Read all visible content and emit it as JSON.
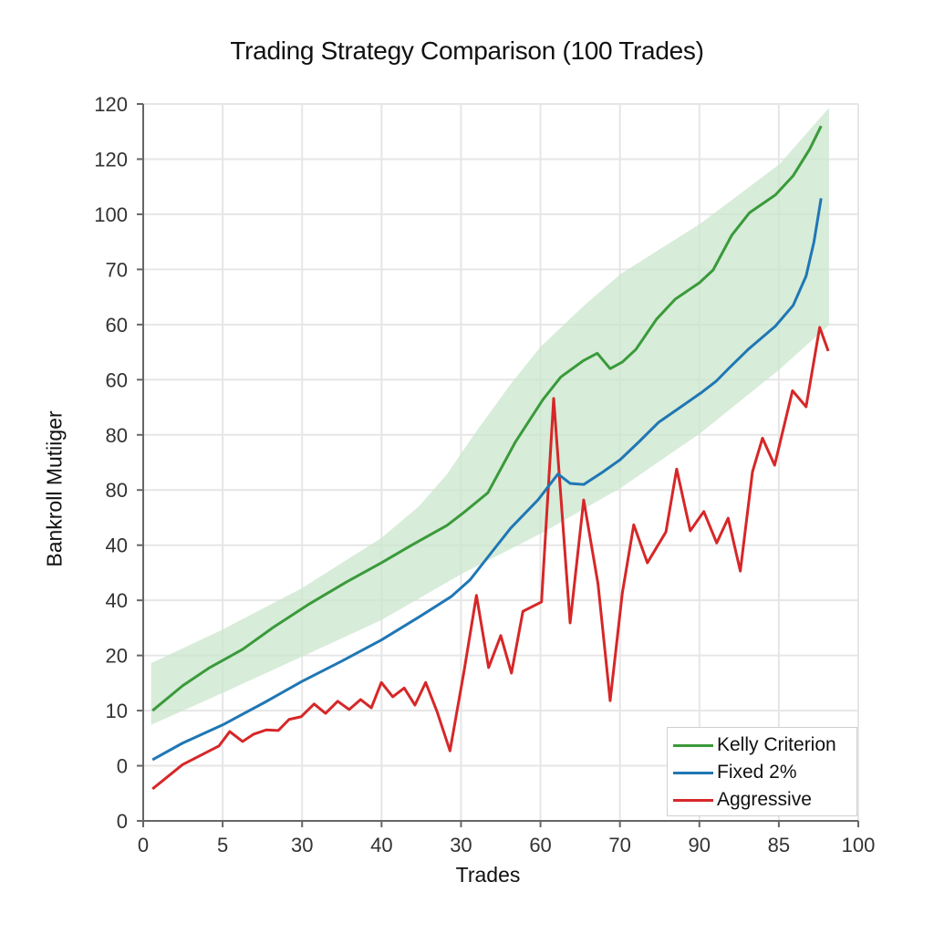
{
  "title": "Trading Strategy Comparison (100 Trades)",
  "axes": {
    "xlabel": "Trades",
    "ylabel": "Bankroll Mutiiger",
    "x_ticks": [
      "0",
      "5",
      "30",
      "40",
      "30",
      "60",
      "70",
      "90",
      "85",
      "100"
    ],
    "y_ticks_bottom_to_top": [
      "0",
      "0",
      "10",
      "20",
      "40",
      "40",
      "80",
      "80",
      "60",
      "60",
      "70",
      "100",
      "120",
      "120"
    ]
  },
  "legend": {
    "items": [
      {
        "label": "Kelly Criterion",
        "color": "#3a9a3a"
      },
      {
        "label": "Fixed 2%",
        "color": "#1f77b4"
      },
      {
        "label": "Aggressive",
        "color": "#d62728"
      }
    ]
  },
  "colors": {
    "kelly": "#3a9a3a",
    "fixed": "#1f77b4",
    "aggressive": "#d62728",
    "band": "#c9e6cc",
    "grid": "#e6e6e6",
    "axis": "#666666"
  },
  "chart_data": {
    "type": "line",
    "title": "Trading Strategy Comparison (100 Trades)",
    "xlabel": "Trades",
    "ylabel": "Bankroll Mutiiger",
    "xlim": [
      0,
      100
    ],
    "ylim_gridline_index": [
      0,
      13
    ],
    "note": "Y tick labels are non-monotonic; y values below are expressed as position on the 14-gridline scale (0 = bottom tick, 13 = top tick).",
    "grid": true,
    "legend_position": "lower right",
    "series": [
      {
        "name": "Kelly Criterion",
        "x": [
          1.3,
          5.5,
          9.3,
          13.9,
          18.2,
          23.3,
          28.4,
          33.3,
          37.4,
          42.5,
          45.0,
          48.2,
          52.0,
          55.9,
          58.4,
          61.6,
          63.5,
          65.3,
          67.0,
          68.9,
          71.8,
          74.4,
          77.8,
          79.7,
          82.3,
          84.8,
          88.4,
          90.9,
          93.2,
          94.8
        ],
        "y": [
          2.0,
          2.45,
          2.78,
          3.11,
          3.51,
          3.94,
          4.33,
          4.68,
          4.99,
          5.36,
          5.61,
          5.95,
          6.86,
          7.64,
          8.05,
          8.35,
          8.48,
          8.2,
          8.32,
          8.55,
          9.1,
          9.46,
          9.76,
          9.99,
          10.62,
          11.03,
          11.35,
          11.7,
          12.18,
          12.6
        ]
      },
      {
        "name": "Fixed 2%",
        "x": [
          1.3,
          5.5,
          11.1,
          17.0,
          22.2,
          27.8,
          33.3,
          38.6,
          43.1,
          45.7,
          48.9,
          51.4,
          55.2,
          58.0,
          59.7,
          61.6,
          64.2,
          66.7,
          69.3,
          72.1,
          75.0,
          78.2,
          80.1,
          82.0,
          84.6,
          88.4,
          90.9,
          92.7,
          93.8,
          94.8
        ],
        "y": [
          1.11,
          1.41,
          1.74,
          2.15,
          2.53,
          2.9,
          3.28,
          3.7,
          4.07,
          4.37,
          4.9,
          5.31,
          5.82,
          6.29,
          6.12,
          6.1,
          6.32,
          6.55,
          6.87,
          7.23,
          7.49,
          7.78,
          7.97,
          8.22,
          8.55,
          8.97,
          9.35,
          9.88,
          10.5,
          11.29
        ]
      },
      {
        "name": "Aggressive",
        "x": [
          1.3,
          5.5,
          10.6,
          12.1,
          13.9,
          15.4,
          17.2,
          18.9,
          20.4,
          22.1,
          23.9,
          25.5,
          27.2,
          28.8,
          30.4,
          31.9,
          33.3,
          34.9,
          36.5,
          38.0,
          39.5,
          41.1,
          42.9,
          44.9,
          46.6,
          48.3,
          50.0,
          51.5,
          53.1,
          55.7,
          57.4,
          59.7,
          61.6,
          63.6,
          65.3,
          67.0,
          68.6,
          70.5,
          73.1,
          74.6,
          76.5,
          78.4,
          80.2,
          81.8,
          83.5,
          85.2,
          86.6,
          88.3,
          90.8,
          92.7,
          94.6,
          95.8
        ],
        "y": [
          0.58,
          1.02,
          1.36,
          1.62,
          1.44,
          1.57,
          1.65,
          1.64,
          1.84,
          1.89,
          2.12,
          1.95,
          2.17,
          2.02,
          2.2,
          2.05,
          2.51,
          2.25,
          2.41,
          2.1,
          2.51,
          1.98,
          1.27,
          2.74,
          4.09,
          2.78,
          3.36,
          2.68,
          3.8,
          3.97,
          7.66,
          3.59,
          5.82,
          4.3,
          2.18,
          4.13,
          5.37,
          4.68,
          5.24,
          6.38,
          5.26,
          5.61,
          5.04,
          5.49,
          4.53,
          6.33,
          6.94,
          6.45,
          7.8,
          7.51,
          8.95,
          8.52
        ]
      }
    ],
    "band": {
      "name": "Kelly confidence band",
      "upper": {
        "x": [
          1.1,
          11.1,
          22.2,
          33.3,
          38.6,
          42.5,
          46.4,
          51.5,
          55.6,
          61.7,
          66.8,
          77.9,
          89.0,
          95.9
        ],
        "y": [
          2.86,
          3.47,
          4.22,
          5.13,
          5.71,
          6.29,
          7.03,
          7.94,
          8.6,
          9.35,
          9.92,
          10.83,
          11.91,
          12.93
        ]
      },
      "lower": {
        "x": [
          1.1,
          11.1,
          22.2,
          33.3,
          44.4,
          55.6,
          66.8,
          77.9,
          89.0,
          95.9
        ],
        "y": [
          1.74,
          2.32,
          2.98,
          3.64,
          4.47,
          5.21,
          6.04,
          7.03,
          8.19,
          8.99
        ]
      }
    }
  }
}
